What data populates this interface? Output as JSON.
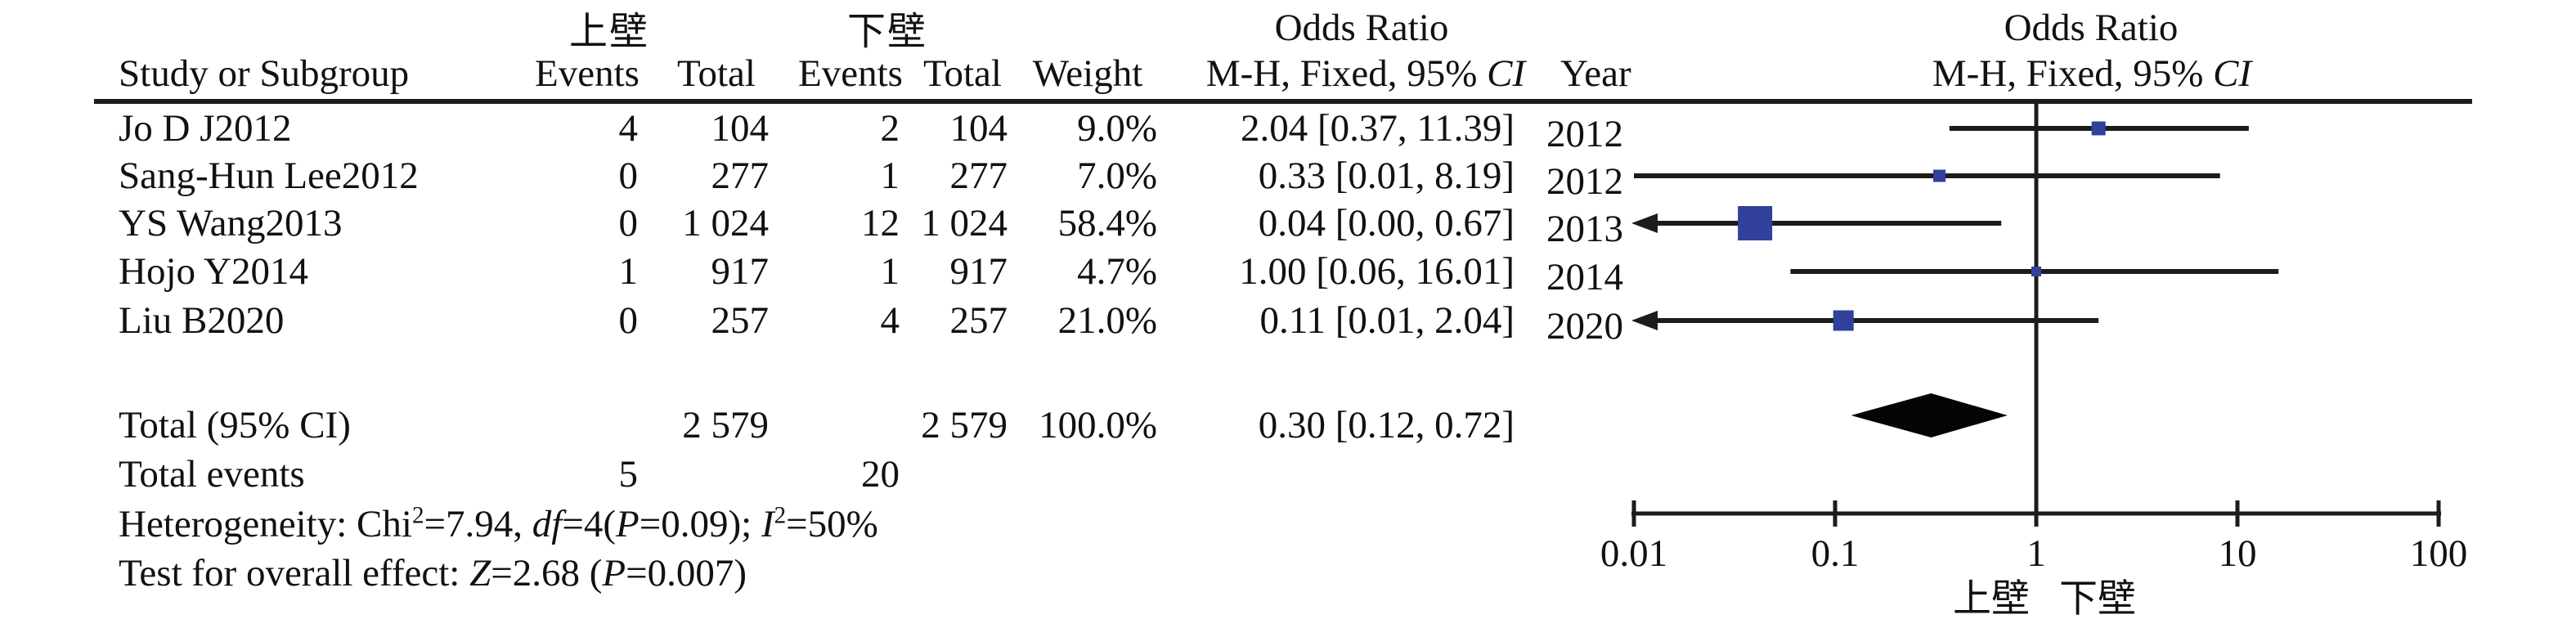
{
  "table": {
    "group1_label": "上壁",
    "group2_label": "下壁",
    "or_header": "Odds Ratio",
    "col_headers": {
      "study": "Study or Subgroup",
      "events": "Events",
      "total": "Total",
      "weight": "Weight",
      "year": "Year"
    },
    "mh_header_text": "M-H, Fixed, 95% CI",
    "mh_header_segments": [
      {
        "t": "M-H, Fixed, 95% ",
        "i": false
      },
      {
        "t": "CI",
        "i": true
      }
    ]
  },
  "chart_data": {
    "type": "forest",
    "effect_measure": "Odds Ratio (M-H, Fixed, 95% CI)",
    "x_axis": {
      "scale": "log",
      "min": 0.01,
      "max": 100,
      "tick_labels": [
        "0.01",
        "0.1",
        "1",
        "10",
        "100"
      ],
      "tick_values": [
        0.01,
        0.1,
        1,
        10,
        100
      ],
      "favours_left_label": "上壁",
      "favours_right_label": "下壁"
    },
    "studies": [
      {
        "study": "Jo D J2012",
        "events_a": "4",
        "total_a": "104",
        "events_b": "2",
        "total_b": "104",
        "weight": "9.0%",
        "weight_pct": 9.0,
        "or": 2.04,
        "lo": 0.37,
        "hi": 11.39,
        "ci_text": "2.04 [0.37, 11.39]",
        "year": "2012",
        "arrow_left": false
      },
      {
        "study": "Sang-Hun Lee2012",
        "events_a": "0",
        "total_a": "277",
        "events_b": "1",
        "total_b": "277",
        "weight": "7.0%",
        "weight_pct": 7.0,
        "or": 0.33,
        "lo": 0.01,
        "hi": 8.19,
        "ci_text": "0.33 [0.01, 8.19]",
        "year": "2012",
        "arrow_left": false
      },
      {
        "study": "YS Wang2013",
        "events_a": "0",
        "total_a": "1 024",
        "events_b": "12",
        "total_b": "1 024",
        "weight": "58.4%",
        "weight_pct": 58.4,
        "or": 0.04,
        "lo": 0.004,
        "hi": 0.67,
        "ci_text": "0.04 [0.00, 0.67]",
        "year": "2013",
        "arrow_left": true
      },
      {
        "study": "Hojo Y2014",
        "events_a": "1",
        "total_a": "917",
        "events_b": "1",
        "total_b": "917",
        "weight": "4.7%",
        "weight_pct": 4.7,
        "or": 1.0,
        "lo": 0.06,
        "hi": 16.01,
        "ci_text": "1.00 [0.06, 16.01]",
        "year": "2014",
        "arrow_left": false
      },
      {
        "study": "Liu B2020",
        "events_a": "0",
        "total_a": "257",
        "events_b": "4",
        "total_b": "257",
        "weight": "21.0%",
        "weight_pct": 21.0,
        "or": 0.11,
        "lo": 0.01,
        "hi": 2.04,
        "ci_text": "0.11 [0.01, 2.04]",
        "year": "2020",
        "arrow_left": true
      }
    ],
    "total": {
      "label": "Total (95% CI)",
      "total_a": "2 579",
      "total_b": "2 579",
      "weight": "100.0%",
      "or": 0.3,
      "lo": 0.12,
      "hi": 0.72,
      "ci_text": "0.30 [0.12, 0.72]"
    },
    "total_events": {
      "label": "Total events",
      "a": "5",
      "b": "20"
    }
  },
  "stats": {
    "heterogeneity": {
      "text": "Heterogeneity: Chi²=7.94, df=4(P=0.09); I²=50%",
      "segments": [
        {
          "t": "Heterogeneity: Chi",
          "i": false
        },
        {
          "t": "2",
          "sup": true
        },
        {
          "t": "=7.94, ",
          "i": false
        },
        {
          "t": "df",
          "i": true
        },
        {
          "t": "=4(",
          "i": false
        },
        {
          "t": "P",
          "i": true
        },
        {
          "t": "=0.09); ",
          "i": false
        },
        {
          "t": "I",
          "i": true
        },
        {
          "t": "2",
          "sup": true
        },
        {
          "t": "=50%",
          "i": false
        }
      ]
    },
    "overall_effect": {
      "text": "Test for overall effect: Z=2.68 (P=0.007)",
      "segments": [
        {
          "t": "Test for overall effect: ",
          "i": false
        },
        {
          "t": "Z",
          "i": true
        },
        {
          "t": "=2.68 (",
          "i": false
        },
        {
          "t": "P",
          "i": true
        },
        {
          "t": "=0.007)",
          "i": false
        }
      ]
    }
  },
  "colors": {
    "square": "#31409b",
    "line": "#1c1c1c",
    "diamond": "#050505",
    "text": "#111111"
  }
}
